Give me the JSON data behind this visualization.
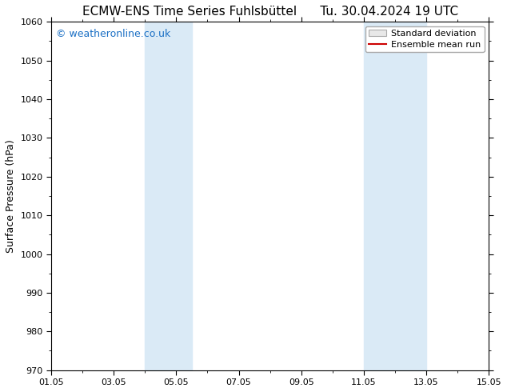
{
  "title": "ECMW-ENS Time Series Fuhlsbüttel      Tu. 30.04.2024 19 UTC",
  "ylabel": "Surface Pressure (hPa)",
  "ylim": [
    970,
    1060
  ],
  "yticks": [
    970,
    980,
    990,
    1000,
    1010,
    1020,
    1030,
    1040,
    1050,
    1060
  ],
  "xlim_start": 0,
  "xlim_end": 14,
  "xtick_labels": [
    "01.05",
    "03.05",
    "05.05",
    "07.05",
    "09.05",
    "11.05",
    "13.05",
    "15.05"
  ],
  "xtick_positions": [
    0,
    2,
    4,
    6,
    8,
    10,
    12,
    14
  ],
  "shaded_regions": [
    {
      "x_start": 3.0,
      "x_end": 4.5
    },
    {
      "x_start": 10.0,
      "x_end": 12.0
    }
  ],
  "shaded_color": "#daeaf6",
  "background_color": "#ffffff",
  "watermark_text": "© weatheronline.co.uk",
  "watermark_color": "#1a6fc4",
  "legend_std_label": "Standard deviation",
  "legend_mean_label": "Ensemble mean run",
  "legend_std_facecolor": "#e8e8e8",
  "legend_std_edgecolor": "#aaaaaa",
  "legend_mean_color": "#cc0000",
  "title_fontsize": 11,
  "axis_fontsize": 9,
  "tick_fontsize": 8,
  "watermark_fontsize": 9,
  "legend_fontsize": 8
}
